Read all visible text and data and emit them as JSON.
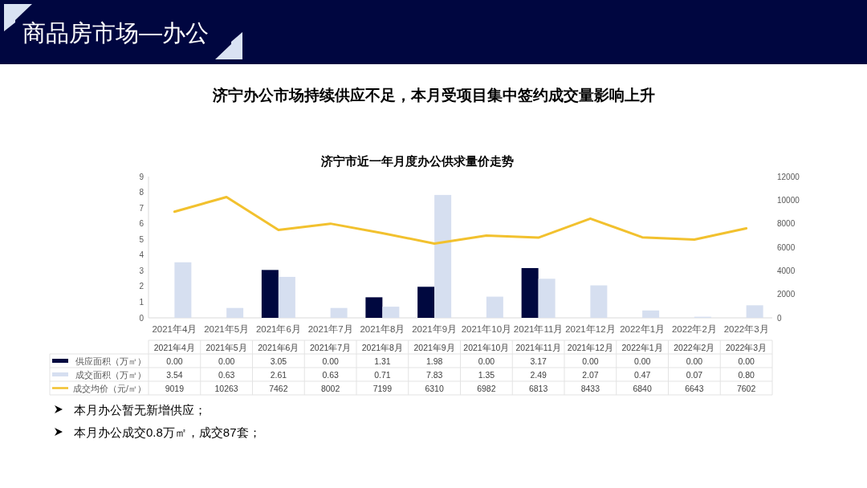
{
  "chart_data": {
    "type": "bar",
    "title": "济宁市近一年月度办公供求量价走势",
    "annotations": [
      "商品房市场—办公",
      "济宁办公市场持续供应不足，本月受项目集中签约成交量影响上升",
      "本月办公暂无新增供应；",
      "本月办公成交0.8万㎡，成交87套；"
    ],
    "categories": [
      "2021年4月",
      "2021年5月",
      "2021年6月",
      "2021年7月",
      "2021年8月",
      "2021年9月",
      "2021年10月",
      "2021年11月",
      "2021年12月",
      "2022年1月",
      "2022年2月",
      "2022年3月"
    ],
    "series": [
      {
        "name": "供应面积（万㎡）",
        "color": "#00083f",
        "values": [
          0,
          0,
          3.05,
          0,
          1.31,
          1.98,
          0,
          3.17,
          0,
          0,
          0,
          0
        ],
        "value_labels": [
          "0.00",
          "0.00",
          "3.05",
          "0.00",
          "1.31",
          "1.98",
          "0.00",
          "3.17",
          "0.00",
          "0.00",
          "0.00",
          "0.00"
        ]
      },
      {
        "name": "成交面积（万㎡）",
        "color": "#d6dff0",
        "values": [
          3.54,
          0.63,
          2.61,
          0.63,
          0.71,
          7.83,
          1.35,
          2.49,
          2.07,
          0.47,
          0.07,
          0.8
        ],
        "value_labels": [
          "3.54",
          "0.63",
          "2.61",
          "0.63",
          "0.71",
          "7.83",
          "1.35",
          "2.49",
          "2.07",
          "0.47",
          "0.07",
          "0.80"
        ]
      },
      {
        "name": "成交均价（元/㎡）",
        "type": "line",
        "axis": "y2",
        "color": "#f2c12e",
        "values": [
          9019,
          10263,
          7462,
          8002,
          7199,
          6310,
          6982,
          6813,
          8433,
          6840,
          6643,
          7602
        ],
        "value_labels": [
          "9019",
          "10263",
          "7462",
          "8002",
          "7199",
          "6310",
          "6982",
          "6813",
          "8433",
          "6840",
          "6643",
          "7602"
        ]
      }
    ],
    "ylim": [
      0,
      9
    ],
    "yticks": [
      0,
      1,
      2,
      3,
      4,
      5,
      6,
      7,
      8,
      9
    ],
    "y2lim": [
      0,
      12000
    ],
    "y2ticks": [
      0,
      2000,
      4000,
      6000,
      8000,
      10000,
      12000
    ],
    "legend": "bottom"
  }
}
